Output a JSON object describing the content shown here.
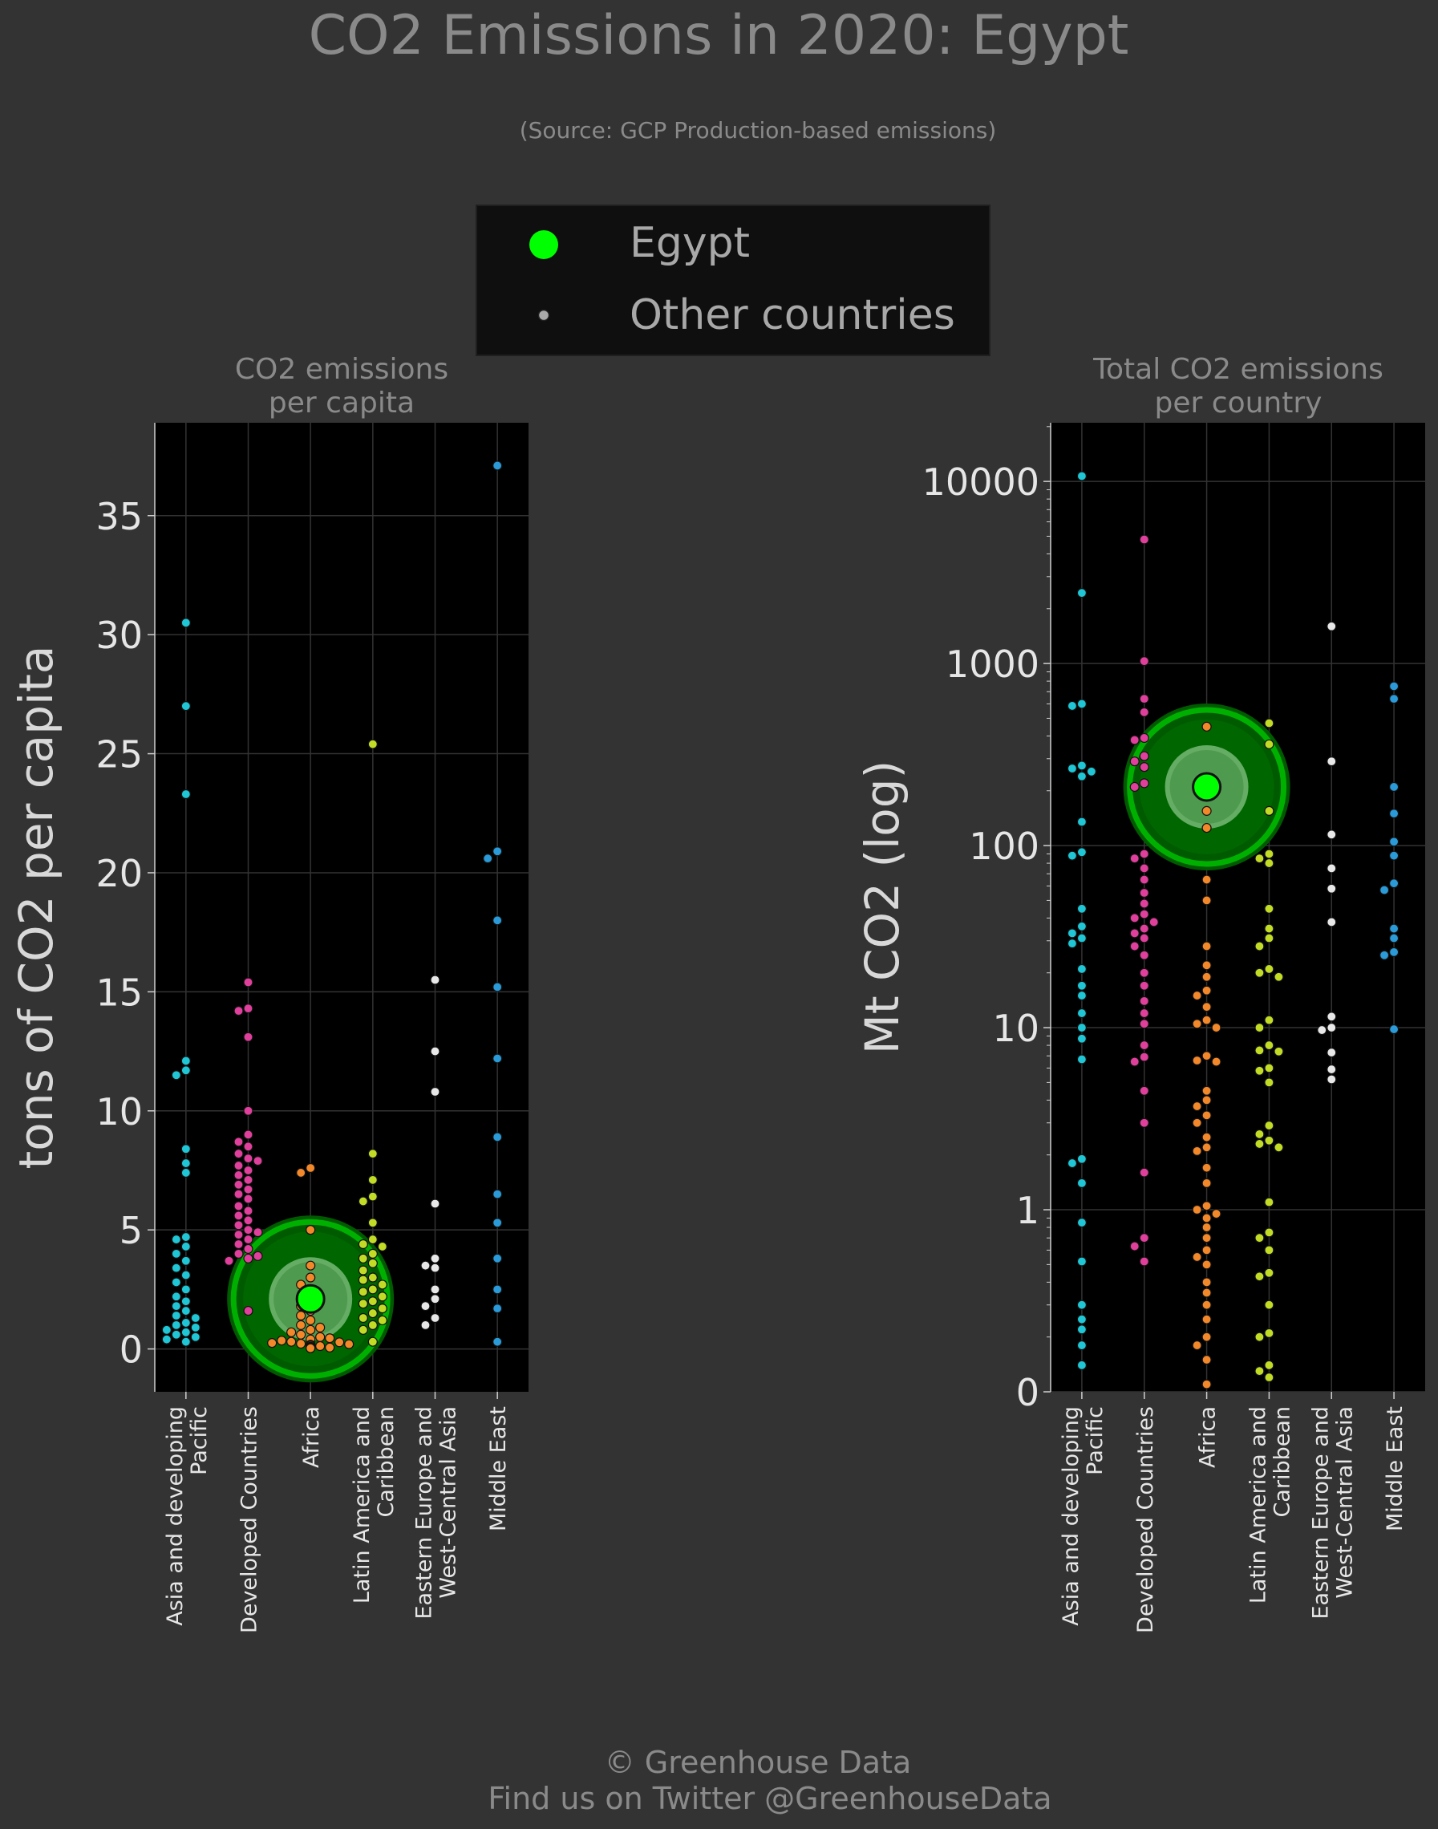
{
  "title": "CO2 Emissions in 2020: Egypt",
  "subtitle": "(Source: GCP Production-based emissions)",
  "legend": {
    "highlight_label": "Egypt",
    "other_label": "Other countries"
  },
  "footer": {
    "line1": "© Greenhouse Data",
    "line2": "Find us on Twitter @GreenhouseData"
  },
  "colors": {
    "background": "#333333",
    "plot_background": "#000000",
    "highlight": "#00ff00",
    "Asia and developing Pacific": "#1fc7d6",
    "Developed Countries": "#e0409c",
    "Africa": "#f2882a",
    "Latin America and Caribbean": "#c2dc26",
    "Eastern Europe and West-Central Asia": "#e8e8e8",
    "Middle East": "#2a9ad8"
  },
  "chart_data": [
    {
      "type": "scatter",
      "title": "CO2 emissions\nper capita",
      "ylabel": "tons of CO2 per capita",
      "xlabel": "",
      "scale": "linear",
      "ylim": [
        -1.8,
        38.9
      ],
      "yticks": [
        0,
        5,
        10,
        15,
        20,
        25,
        30,
        35
      ],
      "ytick_labels": [
        "0",
        "5",
        "10",
        "15",
        "20",
        "25",
        "30",
        "35"
      ],
      "grid": true,
      "categories": [
        "Asia and developing\nPacific",
        "Developed Countries",
        "Africa",
        "Latin America and\nCaribbean",
        "Eastern Europe and\nWest-Central Asia",
        "Middle East"
      ],
      "highlight": {
        "name": "Egypt",
        "category": "Africa",
        "value": 2.1
      },
      "series": [
        {
          "category": "Asia and developing Pacific",
          "values": [
            30.5,
            27.0,
            23.3,
            12.1,
            11.7,
            11.5,
            8.4,
            7.8,
            7.4,
            4.7,
            4.6,
            4.3,
            4.0,
            3.7,
            3.4,
            3.1,
            2.8,
            2.5,
            2.2,
            2.0,
            1.8,
            1.6,
            1.4,
            1.3,
            1.1,
            1.0,
            0.9,
            0.8,
            0.7,
            0.6,
            0.5,
            0.4,
            0.3
          ]
        },
        {
          "category": "Developed Countries",
          "values": [
            15.4,
            14.3,
            14.2,
            13.1,
            10.0,
            9.0,
            8.7,
            8.5,
            8.2,
            8.0,
            7.9,
            7.7,
            7.5,
            7.3,
            7.1,
            6.9,
            6.7,
            6.5,
            6.3,
            6.0,
            5.8,
            5.6,
            5.4,
            5.2,
            5.0,
            4.9,
            4.8,
            4.6,
            4.4,
            4.2,
            4.0,
            3.9,
            3.8,
            3.7,
            1.6
          ]
        },
        {
          "category": "Africa",
          "values": [
            7.6,
            7.4,
            5.0,
            3.5,
            3.0,
            2.7,
            2.4,
            2.2,
            2.0,
            1.8,
            1.6,
            1.4,
            1.2,
            1.0,
            0.9,
            0.8,
            0.7,
            0.6,
            0.5,
            0.45,
            0.4,
            0.35,
            0.3,
            0.28,
            0.25,
            0.22,
            0.2,
            0.18,
            0.15,
            0.12,
            0.1,
            0.08,
            0.06,
            0.05,
            0.04,
            0.03
          ]
        },
        {
          "category": "Latin America and Caribbean",
          "values": [
            25.4,
            8.2,
            7.1,
            6.4,
            6.2,
            5.3,
            4.6,
            4.4,
            4.3,
            4.0,
            3.8,
            3.6,
            3.3,
            3.0,
            2.9,
            2.7,
            2.5,
            2.4,
            2.2,
            2.0,
            1.9,
            1.7,
            1.5,
            1.3,
            1.2,
            1.0,
            0.8,
            0.3
          ]
        },
        {
          "category": "Eastern Europe and West-Central Asia",
          "values": [
            15.5,
            12.5,
            10.8,
            6.1,
            3.8,
            3.5,
            3.4,
            2.5,
            2.1,
            1.8,
            1.3,
            1.0
          ]
        },
        {
          "category": "Middle East",
          "values": [
            37.1,
            20.9,
            20.6,
            18.0,
            15.2,
            12.2,
            8.9,
            6.5,
            5.3,
            3.8,
            2.5,
            1.7,
            0.3
          ]
        }
      ]
    },
    {
      "type": "scatter",
      "title": "Total CO2 emissions\nper country",
      "ylabel": "Mt CO2 (log)",
      "xlabel": "",
      "scale": "log",
      "ylim": [
        0.1,
        21000
      ],
      "yticks": [
        0.1,
        1,
        10,
        100,
        1000,
        10000
      ],
      "ytick_labels": [
        "0",
        "1",
        "10",
        "100",
        "1000",
        "10000"
      ],
      "grid": true,
      "categories": [
        "Asia and developing\nPacific",
        "Developed Countries",
        "Africa",
        "Latin America and\nCaribbean",
        "Eastern Europe and\nWest-Central Asia",
        "Middle East"
      ],
      "highlight": {
        "name": "Egypt",
        "category": "Africa",
        "value": 210
      },
      "series": [
        {
          "category": "Asia and developing Pacific",
          "values": [
            10700,
            2440,
            600,
            585,
            275,
            265,
            255,
            240,
            135,
            92,
            88,
            45,
            36,
            33,
            31,
            29,
            21,
            17,
            15,
            12,
            10,
            8.7,
            6.7,
            1.9,
            1.8,
            1.4,
            0.85,
            0.52,
            0.3,
            0.25,
            0.22,
            0.18,
            0.14
          ]
        },
        {
          "category": "Developed Countries",
          "values": [
            4800,
            1030,
            640,
            540,
            390,
            380,
            310,
            290,
            270,
            220,
            210,
            90,
            85,
            75,
            65,
            55,
            48,
            42,
            40,
            38,
            35,
            33,
            31,
            28,
            25,
            20,
            17,
            14,
            12,
            10.5,
            8,
            6.9,
            6.5,
            4.5,
            3.0,
            1.6,
            0.7,
            0.63,
            0.52
          ]
        },
        {
          "category": "Africa",
          "values": [
            450,
            155,
            125,
            65,
            50,
            28,
            22,
            19,
            16,
            15,
            13,
            11,
            10.5,
            10,
            7,
            6.6,
            6.5,
            4.5,
            4,
            3.7,
            3.3,
            3,
            2.5,
            2.2,
            2.1,
            1.7,
            1.4,
            1.05,
            1.0,
            0.95,
            0.9,
            0.8,
            0.7,
            0.6,
            0.55,
            0.5,
            0.4,
            0.35,
            0.3,
            0.25,
            0.2,
            0.18,
            0.15,
            0.11
          ]
        },
        {
          "category": "Latin America and Caribbean",
          "values": [
            470,
            360,
            155,
            90,
            85,
            80,
            45,
            35,
            31,
            28,
            21,
            20,
            19,
            11,
            10,
            8,
            7.5,
            7.4,
            6,
            5.8,
            5,
            2.9,
            2.6,
            2.4,
            2.3,
            2.2,
            1.1,
            0.75,
            0.7,
            0.6,
            0.45,
            0.43,
            0.3,
            0.21,
            0.2,
            0.14,
            0.13,
            0.12
          ]
        },
        {
          "category": "Eastern Europe and West-Central Asia",
          "values": [
            1600,
            290,
            115,
            75,
            58,
            38,
            11.5,
            10,
            9.7,
            7.3,
            5.9,
            5.2
          ]
        },
        {
          "category": "Middle East",
          "values": [
            750,
            640,
            210,
            150,
            105,
            88,
            62,
            57,
            35,
            31,
            26,
            25,
            9.8
          ]
        }
      ]
    }
  ]
}
